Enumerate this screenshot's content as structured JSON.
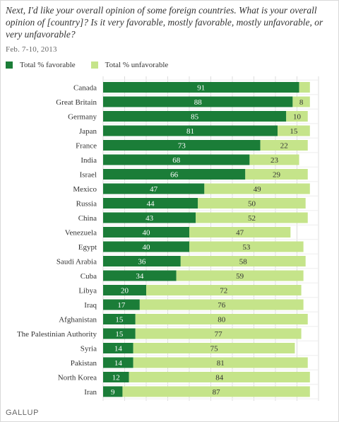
{
  "title": "Next, I'd like your overall opinion of some foreign countries. What is your overall opinion of [country]? Is it very favorable, mostly favorable, mostly unfavorable, or very unfavorable?",
  "subtitle": "Feb. 7-10, 2013",
  "footer": "GALLUP",
  "colors": {
    "favorable": "#1b7d38",
    "unfavorable": "#c5e48a",
    "grid": "#dcdcdc"
  },
  "chart_data": {
    "type": "bar",
    "orientation": "horizontal",
    "stacked": true,
    "xlim": [
      0,
      100
    ],
    "grid": true,
    "legend_position": "top-left",
    "categories": [
      "Canada",
      "Great Britain",
      "Germany",
      "Japan",
      "France",
      "India",
      "Israel",
      "Mexico",
      "Russia",
      "China",
      "Venezuela",
      "Egypt",
      "Saudi Arabia",
      "Cuba",
      "Libya",
      "Iraq",
      "Afghanistan",
      "The Palestinian Authority",
      "Syria",
      "Pakistan",
      "North Korea",
      "Iran"
    ],
    "series": [
      {
        "name": "Total % favorable",
        "values": [
          91,
          88,
          85,
          81,
          73,
          68,
          66,
          47,
          44,
          43,
          40,
          40,
          36,
          34,
          20,
          17,
          15,
          15,
          14,
          14,
          12,
          9
        ]
      },
      {
        "name": "Total % unfavorable",
        "values": [
          null,
          8,
          10,
          15,
          22,
          23,
          29,
          49,
          50,
          52,
          47,
          53,
          58,
          59,
          72,
          76,
          80,
          77,
          75,
          81,
          84,
          87
        ]
      }
    ],
    "implied_segments": {
      "Canada": {
        "unfavorable": 5
      }
    }
  }
}
